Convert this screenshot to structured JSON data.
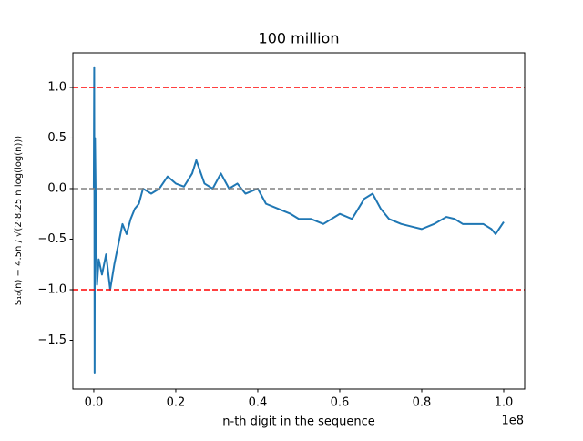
{
  "chart_data": {
    "type": "line",
    "title": "100 million",
    "xlabel": "n-th digit in the sequence",
    "ylabel": "S₁₀(n) − 4.5n / √(2·8.25 n log(log(n)))",
    "x_offset_label": "1e8",
    "xlim": [
      -5100000,
      105110000
    ],
    "ylim": [
      -1.982,
      1.342
    ],
    "xticks": [
      {
        "value": 0,
        "label": "0.0"
      },
      {
        "value": 20000000,
        "label": "0.2"
      },
      {
        "value": 40000000,
        "label": "0.4"
      },
      {
        "value": 60000000,
        "label": "0.6"
      },
      {
        "value": 80000000,
        "label": "0.8"
      },
      {
        "value": 100000000,
        "label": "1.0"
      }
    ],
    "yticks": [
      {
        "value": -1.5,
        "label": "−1.5"
      },
      {
        "value": -1,
        "label": "−1.0"
      },
      {
        "value": -0.5,
        "label": "−0.5"
      },
      {
        "value": 0,
        "label": "0.0"
      },
      0.5,
      {
        "value": 1,
        "label": "1.0"
      }
    ],
    "hlines": [
      {
        "value": 1,
        "color": "#ff0000"
      },
      {
        "value": 0,
        "color": "#808080"
      },
      {
        "value": -1,
        "color": "#ff0000"
      }
    ],
    "series": [
      {
        "color": "#1f77b4",
        "x": [
          0,
          100000,
          200000,
          300000,
          500000,
          800000,
          1200000,
          2000000,
          3000000,
          4000000,
          5000000,
          6000000,
          7000000,
          8000000,
          9000000,
          10000000,
          11000000,
          12000000,
          14000000,
          16000000,
          18000000,
          20000000,
          22000000,
          24000000,
          25000000,
          27000000,
          29000000,
          31000000,
          33000000,
          35000000,
          37000000,
          40000000,
          42000000,
          45000000,
          48000000,
          50000000,
          53000000,
          56000000,
          60000000,
          63000000,
          66000000,
          68000000,
          70000000,
          72000000,
          75000000,
          78000000,
          80000000,
          83000000,
          86000000,
          88000000,
          90000000,
          93000000,
          95000000,
          97000000,
          98000000,
          100000000
        ],
        "values": [
          0,
          1.2,
          -1.82,
          0.5,
          -0.2,
          -0.95,
          -0.7,
          -0.85,
          -0.65,
          -1.0,
          -0.75,
          -0.55,
          -0.35,
          -0.45,
          -0.3,
          -0.2,
          -0.15,
          0.0,
          -0.05,
          0.0,
          0.12,
          0.05,
          0.02,
          0.15,
          0.28,
          0.05,
          0.0,
          0.15,
          0.0,
          0.05,
          -0.05,
          0.0,
          -0.15,
          -0.2,
          -0.25,
          -0.3,
          -0.3,
          -0.35,
          -0.25,
          -0.3,
          -0.1,
          -0.05,
          -0.2,
          -0.3,
          -0.35,
          -0.38,
          -0.4,
          -0.35,
          -0.28,
          -0.3,
          -0.35,
          -0.35,
          -0.35,
          -0.4,
          -0.45,
          -0.33
        ]
      }
    ]
  }
}
